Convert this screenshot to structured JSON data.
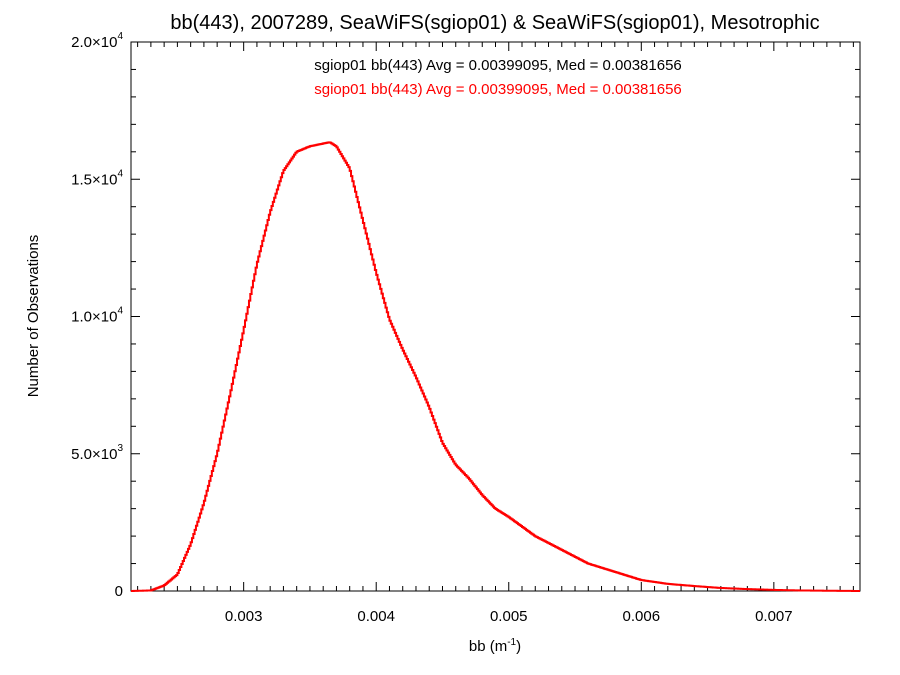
{
  "chart_data": {
    "type": "line",
    "title": "bb(443), 2007289, SeaWiFS(sgiop01) & SeaWiFS(sgiop01), Mesotrophic",
    "xlabel": "bb (m",
    "xlabel_sup": "-1",
    "xlabel_close": ")",
    "ylabel": "Number of Observations",
    "xlim": [
      0.00215,
      0.00765
    ],
    "ylim": [
      0,
      20000
    ],
    "grid": false,
    "legend_placement": "top-center",
    "x_ticks": [
      {
        "value": 0.003,
        "label": "0.003"
      },
      {
        "value": 0.004,
        "label": "0.004"
      },
      {
        "value": 0.005,
        "label": "0.005"
      },
      {
        "value": 0.006,
        "label": "0.006"
      },
      {
        "value": 0.007,
        "label": "0.007"
      }
    ],
    "y_ticks": [
      {
        "value": 0,
        "mant": "0",
        "exp": ""
      },
      {
        "value": 5000,
        "mant": "5.0×10",
        "exp": "3"
      },
      {
        "value": 10000,
        "mant": "1.0×10",
        "exp": "4"
      },
      {
        "value": 15000,
        "mant": "1.5×10",
        "exp": "4"
      },
      {
        "value": 20000,
        "mant": "2.0×10",
        "exp": "4"
      }
    ],
    "annotations": [
      {
        "text": "sgiop01 bb(443) Avg = 0.00399095, Med = 0.00381656",
        "color": "#000000"
      },
      {
        "text": "sgiop01 bb(443) Avg = 0.00399095, Med = 0.00381656",
        "color": "#ff0000"
      }
    ],
    "series": [
      {
        "color": "#ff0000",
        "step": true,
        "x": [
          0.00215,
          0.0023,
          0.0024,
          0.0025,
          0.0026,
          0.0027,
          0.0028,
          0.0029,
          0.003,
          0.0031,
          0.0032,
          0.0033,
          0.0034,
          0.0035,
          0.0036,
          0.00365,
          0.0037,
          0.0038,
          0.0039,
          0.004,
          0.0041,
          0.0042,
          0.0043,
          0.0044,
          0.0045,
          0.0046,
          0.0047,
          0.0048,
          0.0049,
          0.005,
          0.0052,
          0.0054,
          0.0056,
          0.0058,
          0.006,
          0.0062,
          0.0064,
          0.0066,
          0.0068,
          0.007,
          0.0072,
          0.0074,
          0.00765
        ],
        "values": [
          0,
          20,
          200,
          600,
          1700,
          3200,
          5000,
          7200,
          9500,
          11900,
          13800,
          15300,
          16000,
          16200,
          16300,
          16350,
          16200,
          15400,
          13500,
          11600,
          9900,
          8800,
          7800,
          6700,
          5400,
          4600,
          4100,
          3500,
          3000,
          2700,
          2000,
          1500,
          1000,
          700,
          400,
          260,
          180,
          110,
          70,
          40,
          20,
          10,
          0
        ]
      }
    ]
  }
}
